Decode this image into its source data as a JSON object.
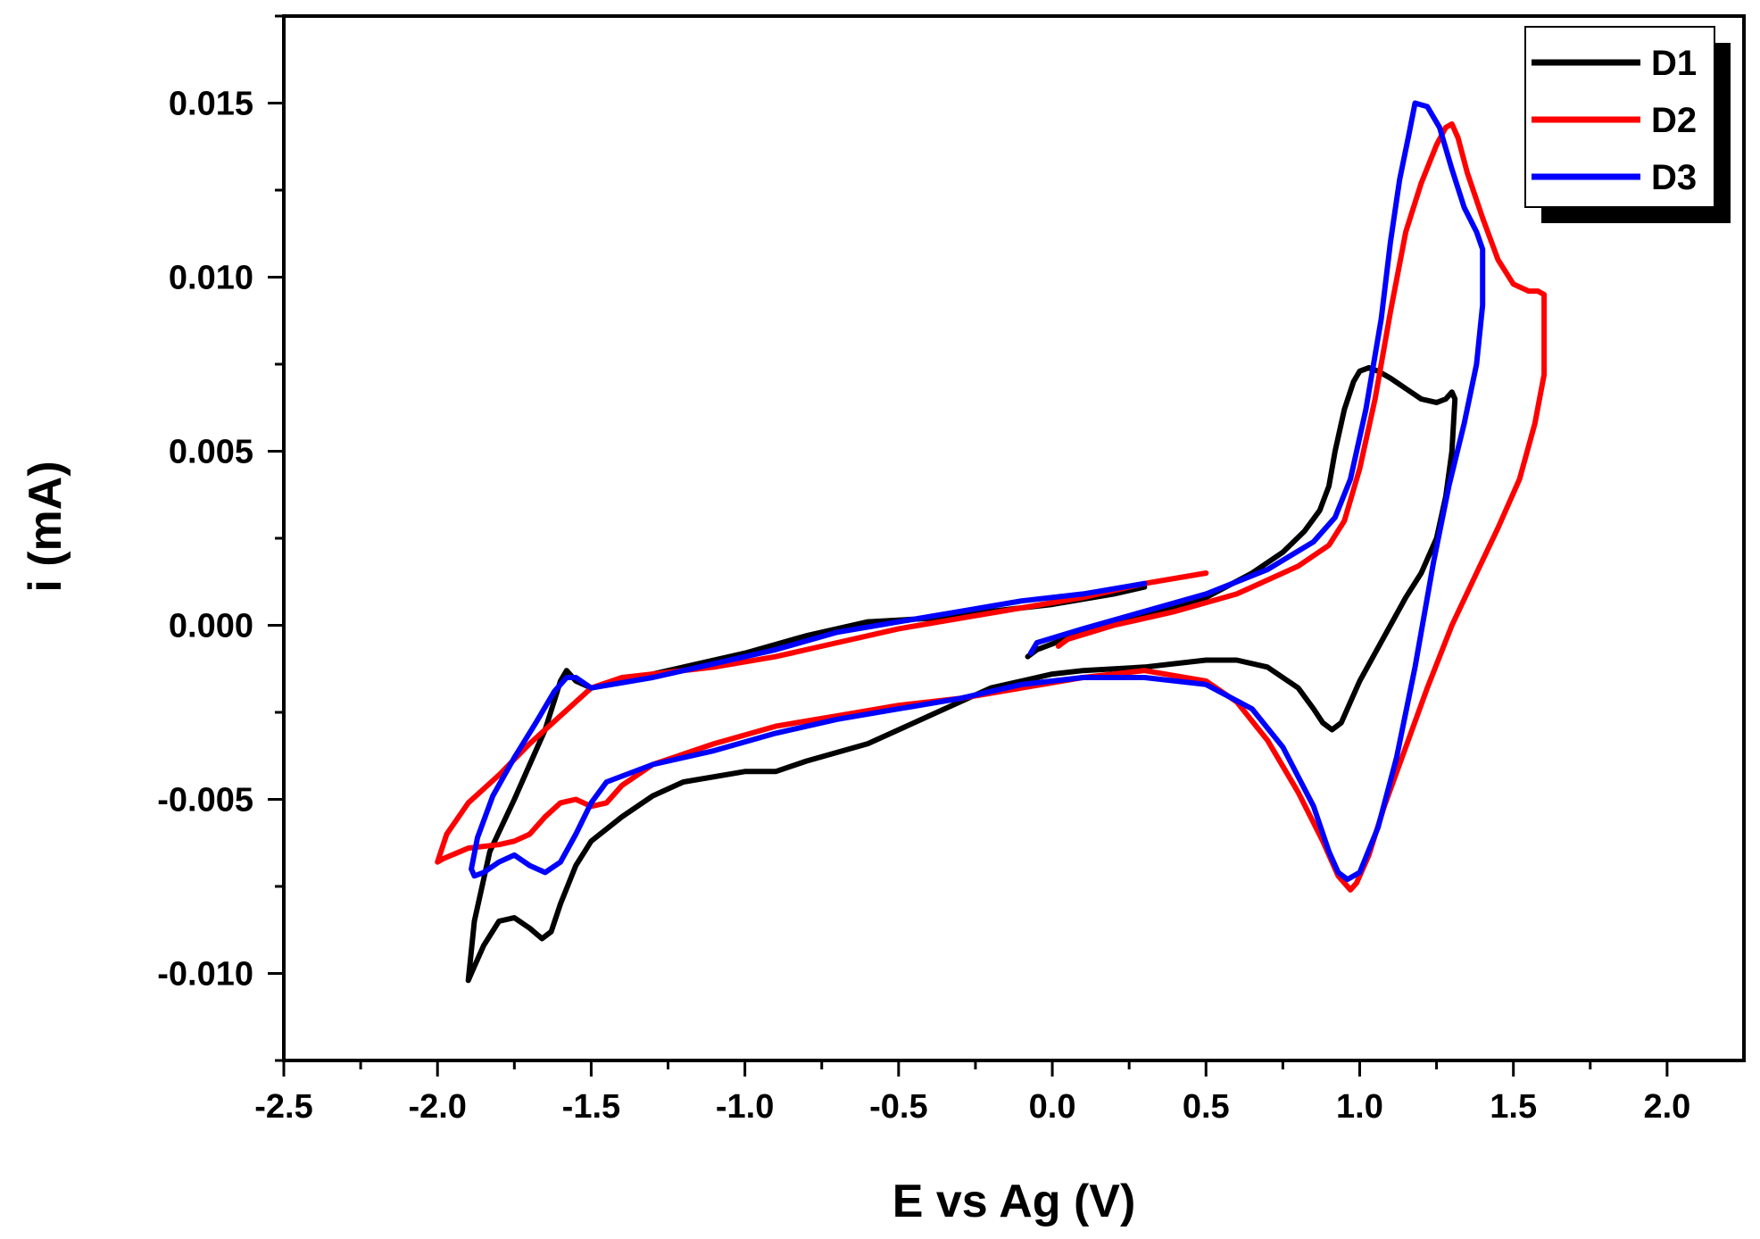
{
  "chart_data": {
    "type": "line",
    "title": "",
    "xlabel": "E vs Ag (V)",
    "ylabel": "i (mA)",
    "xlim": [
      -2.5,
      2.25
    ],
    "ylim": [
      -0.0125,
      0.0175
    ],
    "x_ticks": [
      -2.5,
      -2.0,
      -1.5,
      -1.0,
      -0.5,
      0.0,
      0.5,
      1.0,
      1.5,
      2.0
    ],
    "x_tick_labels": [
      "-2.5",
      "-2.0",
      "-1.5",
      "-1.0",
      "-0.5",
      "0.0",
      "0.5",
      "1.0",
      "1.5",
      "2.0"
    ],
    "y_ticks": [
      -0.01,
      -0.005,
      0.0,
      0.005,
      0.01,
      0.015
    ],
    "y_tick_labels": [
      "-0.010",
      "-0.005",
      "0.000",
      "0.005",
      "0.010",
      "0.015"
    ],
    "grid": false,
    "legend_position": "top-right",
    "series": [
      {
        "name": "D1",
        "color": "#000000",
        "x": [
          -0.08,
          -0.05,
          0.1,
          0.3,
          0.5,
          0.65,
          0.75,
          0.82,
          0.87,
          0.9,
          0.92,
          0.95,
          0.98,
          1.0,
          1.03,
          1.06,
          1.1,
          1.15,
          1.2,
          1.25,
          1.28,
          1.3,
          1.31,
          1.3,
          1.28,
          1.25,
          1.2,
          1.15,
          1.1,
          1.05,
          1.0,
          0.97,
          0.94,
          0.91,
          0.88,
          0.85,
          0.8,
          0.7,
          0.6,
          0.5,
          0.3,
          0.1,
          0.0,
          -0.2,
          -0.4,
          -0.6,
          -0.8,
          -0.9,
          -1.0,
          -1.2,
          -1.3,
          -1.4,
          -1.5,
          -1.55,
          -1.6,
          -1.63,
          -1.66,
          -1.7,
          -1.75,
          -1.8,
          -1.85,
          -1.88,
          -1.9,
          -1.88,
          -1.83,
          -1.75,
          -1.7,
          -1.65,
          -1.6,
          -1.58,
          -1.55,
          -1.5,
          -1.4,
          -1.2,
          -1.0,
          -0.8,
          -0.6,
          -0.4,
          -0.2,
          0.0,
          0.2,
          0.3
        ],
        "y": [
          -0.0009,
          -0.0007,
          -0.0002,
          0.0003,
          0.0008,
          0.0015,
          0.0021,
          0.0027,
          0.0033,
          0.004,
          0.005,
          0.0062,
          0.007,
          0.0073,
          0.0074,
          0.0073,
          0.0071,
          0.0068,
          0.0065,
          0.0064,
          0.0065,
          0.0067,
          0.0065,
          0.005,
          0.0037,
          0.0025,
          0.0015,
          0.0008,
          0.0,
          -0.0008,
          -0.0016,
          -0.0022,
          -0.0028,
          -0.003,
          -0.0028,
          -0.0024,
          -0.0018,
          -0.0012,
          -0.001,
          -0.001,
          -0.0012,
          -0.0013,
          -0.0014,
          -0.0018,
          -0.0026,
          -0.0034,
          -0.0039,
          -0.0042,
          -0.0042,
          -0.0045,
          -0.0049,
          -0.0055,
          -0.0062,
          -0.0069,
          -0.008,
          -0.0088,
          -0.009,
          -0.0087,
          -0.0084,
          -0.0085,
          -0.0092,
          -0.0098,
          -0.0102,
          -0.0085,
          -0.0065,
          -0.005,
          -0.004,
          -0.003,
          -0.0016,
          -0.0013,
          -0.0016,
          -0.0018,
          -0.0016,
          -0.0012,
          -0.0008,
          -0.0003,
          0.0001,
          0.0002,
          0.0004,
          0.0006,
          0.0009,
          0.0011
        ]
      },
      {
        "name": "D2",
        "color": "#ff0000",
        "x": [
          0.02,
          0.05,
          0.2,
          0.4,
          0.6,
          0.8,
          0.9,
          0.95,
          1.0,
          1.05,
          1.1,
          1.15,
          1.2,
          1.25,
          1.28,
          1.3,
          1.32,
          1.35,
          1.4,
          1.45,
          1.5,
          1.55,
          1.58,
          1.6,
          1.6,
          1.57,
          1.52,
          1.45,
          1.38,
          1.3,
          1.22,
          1.15,
          1.08,
          1.03,
          0.99,
          0.97,
          0.93,
          0.88,
          0.8,
          0.7,
          0.6,
          0.5,
          0.3,
          0.1,
          -0.1,
          -0.3,
          -0.5,
          -0.7,
          -0.9,
          -1.1,
          -1.3,
          -1.4,
          -1.45,
          -1.5,
          -1.55,
          -1.6,
          -1.65,
          -1.7,
          -1.75,
          -1.8,
          -1.9,
          -1.98,
          -2.0,
          -1.97,
          -1.9,
          -1.8,
          -1.7,
          -1.6,
          -1.5,
          -1.4,
          -1.3,
          -1.1,
          -0.9,
          -0.7,
          -0.5,
          -0.3,
          -0.1,
          0.1,
          0.3,
          0.5
        ],
        "y": [
          -0.0006,
          -0.0004,
          0.0,
          0.0004,
          0.0009,
          0.0017,
          0.0023,
          0.003,
          0.0045,
          0.0065,
          0.009,
          0.0113,
          0.0127,
          0.0138,
          0.0143,
          0.0144,
          0.014,
          0.013,
          0.0117,
          0.0105,
          0.0098,
          0.0096,
          0.0096,
          0.0095,
          0.0072,
          0.0058,
          0.0042,
          0.0028,
          0.0015,
          0.0,
          -0.0018,
          -0.0035,
          -0.0052,
          -0.0066,
          -0.0074,
          -0.0076,
          -0.0072,
          -0.0062,
          -0.0048,
          -0.0033,
          -0.0022,
          -0.0016,
          -0.0013,
          -0.0015,
          -0.0018,
          -0.0021,
          -0.0023,
          -0.0026,
          -0.0029,
          -0.0034,
          -0.004,
          -0.0046,
          -0.0051,
          -0.0052,
          -0.005,
          -0.0051,
          -0.0055,
          -0.006,
          -0.0062,
          -0.0063,
          -0.0064,
          -0.0067,
          -0.0068,
          -0.006,
          -0.0051,
          -0.0043,
          -0.0034,
          -0.0026,
          -0.0018,
          -0.0015,
          -0.0014,
          -0.0012,
          -0.0009,
          -0.0005,
          -0.0001,
          0.0002,
          0.0005,
          0.0008,
          0.0012,
          0.0015
        ]
      },
      {
        "name": "D3",
        "color": "#0000ff",
        "x": [
          -0.07,
          -0.05,
          0.1,
          0.3,
          0.5,
          0.7,
          0.85,
          0.92,
          0.97,
          1.02,
          1.07,
          1.1,
          1.13,
          1.16,
          1.18,
          1.22,
          1.26,
          1.3,
          1.34,
          1.38,
          1.4,
          1.4,
          1.38,
          1.34,
          1.29,
          1.24,
          1.18,
          1.12,
          1.06,
          1.0,
          0.96,
          0.93,
          0.9,
          0.85,
          0.75,
          0.65,
          0.5,
          0.3,
          0.1,
          -0.1,
          -0.3,
          -0.5,
          -0.7,
          -0.9,
          -1.1,
          -1.3,
          -1.45,
          -1.5,
          -1.55,
          -1.6,
          -1.65,
          -1.7,
          -1.75,
          -1.8,
          -1.85,
          -1.88,
          -1.89,
          -1.87,
          -1.82,
          -1.75,
          -1.68,
          -1.62,
          -1.58,
          -1.55,
          -1.5,
          -1.3,
          -1.1,
          -0.9,
          -0.7,
          -0.5,
          -0.3,
          -0.1,
          0.1,
          0.3
        ],
        "y": [
          -0.0008,
          -0.0005,
          -0.0001,
          0.0004,
          0.0009,
          0.0016,
          0.0024,
          0.0031,
          0.0042,
          0.0062,
          0.0088,
          0.011,
          0.0128,
          0.0141,
          0.015,
          0.0149,
          0.0143,
          0.0131,
          0.012,
          0.0113,
          0.0108,
          0.0092,
          0.0075,
          0.0058,
          0.004,
          0.0018,
          -0.0012,
          -0.0038,
          -0.0058,
          -0.0071,
          -0.0073,
          -0.0071,
          -0.0065,
          -0.0052,
          -0.0035,
          -0.0024,
          -0.0017,
          -0.0015,
          -0.0015,
          -0.0017,
          -0.0021,
          -0.0024,
          -0.0027,
          -0.0031,
          -0.0036,
          -0.004,
          -0.0045,
          -0.0051,
          -0.006,
          -0.0068,
          -0.0071,
          -0.0069,
          -0.0066,
          -0.0068,
          -0.0071,
          -0.0072,
          -0.007,
          -0.0061,
          -0.0049,
          -0.0038,
          -0.0028,
          -0.0019,
          -0.0015,
          -0.0015,
          -0.0018,
          -0.0015,
          -0.0011,
          -0.0007,
          -0.0002,
          0.0001,
          0.0004,
          0.0007,
          0.0009,
          0.0012
        ]
      }
    ]
  }
}
